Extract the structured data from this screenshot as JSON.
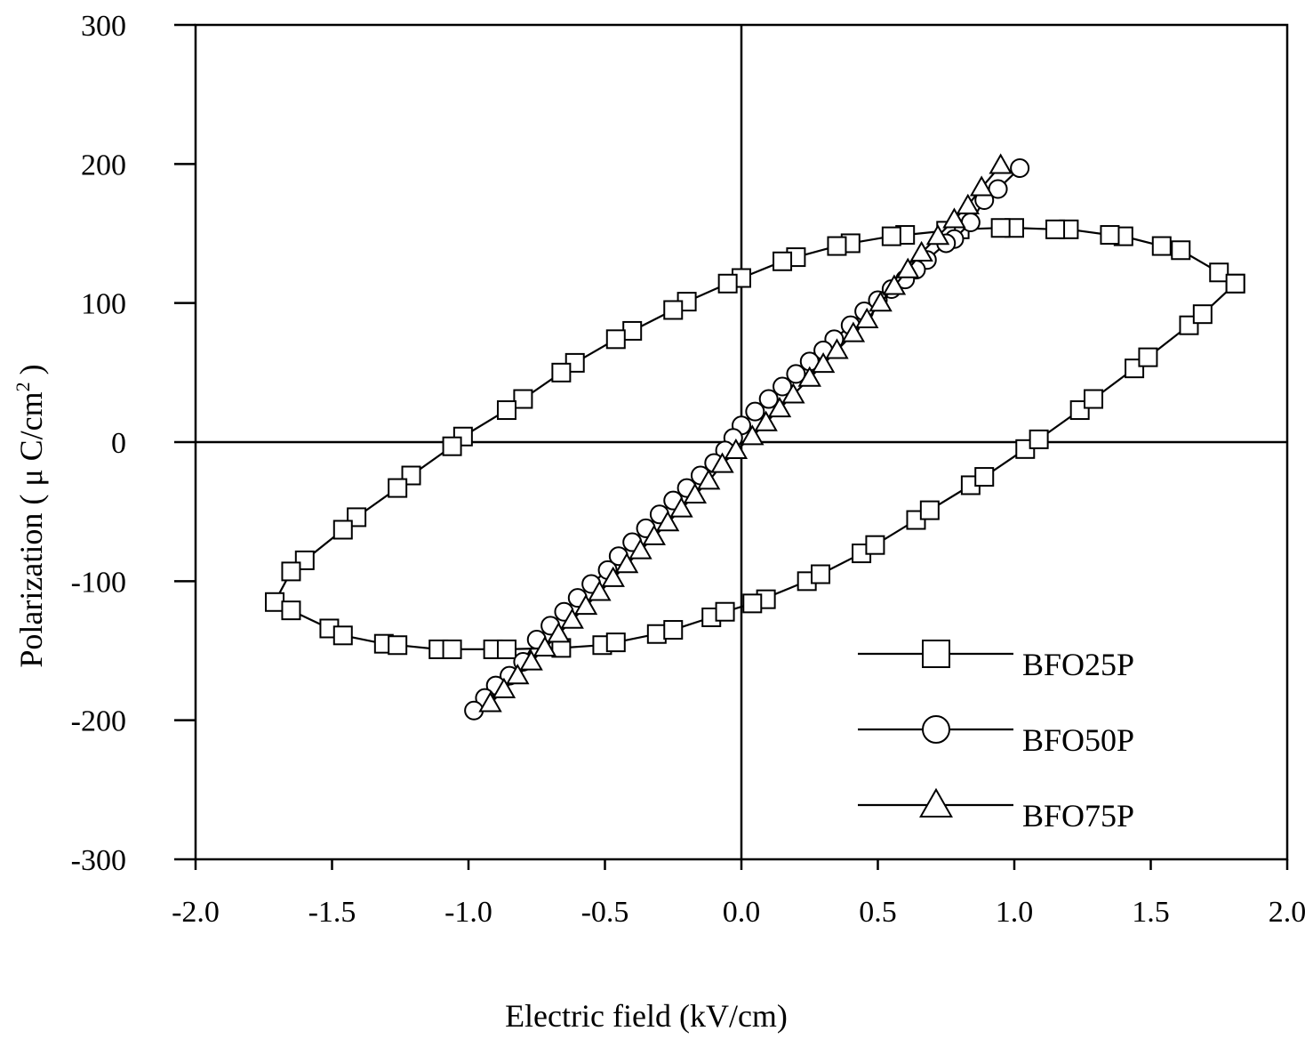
{
  "chart_data": {
    "type": "scatter",
    "xlabel": "Electric field (kV/cm)",
    "ylabel": "Polarization ( μ C/cm",
    "ylabel_superscript": "2",
    "ylabel_close": ")",
    "xlim": [
      -2.0,
      2.0
    ],
    "ylim": [
      -300,
      300
    ],
    "x_ticks": [
      "-2.0",
      "-1.5",
      "-1.0",
      "-0.5",
      "0.0",
      "0.5",
      "1.0",
      "1.5",
      "2.0"
    ],
    "y_ticks": [
      "300",
      "200",
      "100",
      "0",
      "-100",
      "-200",
      "-300"
    ],
    "zero_lines": true,
    "grid": false,
    "legend_position": "bottom-right",
    "series": [
      {
        "name": "BFO25P",
        "marker": "square",
        "points": [
          [
            1.81,
            114
          ],
          [
            1.75,
            122
          ],
          [
            1.61,
            138
          ],
          [
            1.54,
            141
          ],
          [
            1.4,
            148
          ],
          [
            1.35,
            149
          ],
          [
            1.2,
            153
          ],
          [
            1.15,
            153
          ],
          [
            1.0,
            154
          ],
          [
            0.95,
            154
          ],
          [
            0.8,
            153
          ],
          [
            0.75,
            152
          ],
          [
            0.6,
            149
          ],
          [
            0.55,
            148
          ],
          [
            0.4,
            143
          ],
          [
            0.35,
            141
          ],
          [
            0.2,
            133
          ],
          [
            0.15,
            130
          ],
          [
            0.0,
            118
          ],
          [
            -0.05,
            114
          ],
          [
            -0.2,
            101
          ],
          [
            -0.25,
            95
          ],
          [
            -0.4,
            80
          ],
          [
            -0.46,
            74
          ],
          [
            -0.61,
            57
          ],
          [
            -0.66,
            50
          ],
          [
            -0.8,
            31
          ],
          [
            -0.86,
            23
          ],
          [
            -1.02,
            4
          ],
          [
            -1.06,
            -3
          ],
          [
            -1.21,
            -24
          ],
          [
            -1.26,
            -33
          ],
          [
            -1.41,
            -54
          ],
          [
            -1.46,
            -63
          ],
          [
            -1.6,
            -85
          ],
          [
            -1.65,
            -93
          ],
          [
            -1.71,
            -115
          ],
          [
            -1.65,
            -121
          ],
          [
            -1.51,
            -134
          ],
          [
            -1.46,
            -139
          ],
          [
            -1.31,
            -145
          ],
          [
            -1.26,
            -146
          ],
          [
            -1.11,
            -149
          ],
          [
            -1.06,
            -149
          ],
          [
            -0.91,
            -149
          ],
          [
            -0.86,
            -149
          ],
          [
            -0.66,
            -148
          ],
          [
            -0.51,
            -146
          ],
          [
            -0.46,
            -144
          ],
          [
            -0.31,
            -138
          ],
          [
            -0.25,
            -135
          ],
          [
            -0.11,
            -126
          ],
          [
            -0.06,
            -122
          ],
          [
            0.09,
            -113
          ],
          [
            0.04,
            -116
          ],
          [
            0.24,
            -100
          ],
          [
            0.29,
            -95
          ],
          [
            0.44,
            -80
          ],
          [
            0.49,
            -74
          ],
          [
            0.64,
            -56
          ],
          [
            0.69,
            -49
          ],
          [
            0.84,
            -31
          ],
          [
            0.89,
            -25
          ],
          [
            1.04,
            -5
          ],
          [
            1.09,
            2
          ],
          [
            1.24,
            23
          ],
          [
            1.29,
            31
          ],
          [
            1.44,
            53
          ],
          [
            1.49,
            61
          ],
          [
            1.64,
            84
          ],
          [
            1.69,
            92
          ],
          [
            1.81,
            114
          ]
        ]
      },
      {
        "name": "BFO50P",
        "marker": "circle",
        "points": [
          [
            1.02,
            197
          ],
          [
            0.94,
            182
          ],
          [
            0.89,
            174
          ],
          [
            0.84,
            158
          ],
          [
            0.78,
            146
          ],
          [
            0.75,
            143
          ],
          [
            0.68,
            131
          ],
          [
            0.64,
            124
          ],
          [
            0.6,
            117
          ],
          [
            0.55,
            110
          ],
          [
            0.5,
            102
          ],
          [
            0.45,
            94
          ],
          [
            0.4,
            84
          ],
          [
            0.34,
            74
          ],
          [
            0.3,
            66
          ],
          [
            0.25,
            58
          ],
          [
            0.2,
            49
          ],
          [
            0.15,
            40
          ],
          [
            0.1,
            31
          ],
          [
            0.05,
            22
          ],
          [
            0.0,
            12
          ],
          [
            -0.03,
            3
          ],
          [
            -0.06,
            -6
          ],
          [
            -0.1,
            -15
          ],
          [
            -0.15,
            -24
          ],
          [
            -0.2,
            -33
          ],
          [
            -0.25,
            -42
          ],
          [
            -0.3,
            -52
          ],
          [
            -0.35,
            -62
          ],
          [
            -0.4,
            -72
          ],
          [
            -0.45,
            -82
          ],
          [
            -0.49,
            -92
          ],
          [
            -0.55,
            -102
          ],
          [
            -0.6,
            -112
          ],
          [
            -0.65,
            -122
          ],
          [
            -0.7,
            -132
          ],
          [
            -0.75,
            -142
          ],
          [
            -0.8,
            -158
          ],
          [
            -0.85,
            -168
          ],
          [
            -0.9,
            -175
          ],
          [
            -0.94,
            -184
          ],
          [
            -0.98,
            -193
          ]
        ]
      },
      {
        "name": "BFO75P",
        "marker": "triangle",
        "points": [
          [
            0.95,
            199
          ],
          [
            0.88,
            183
          ],
          [
            0.83,
            170
          ],
          [
            0.78,
            160
          ],
          [
            0.72,
            148
          ],
          [
            0.66,
            136
          ],
          [
            0.61,
            124
          ],
          [
            0.56,
            112
          ],
          [
            0.51,
            100
          ],
          [
            0.46,
            88
          ],
          [
            0.41,
            78
          ],
          [
            0.35,
            66
          ],
          [
            0.3,
            56
          ],
          [
            0.25,
            46
          ],
          [
            0.19,
            34
          ],
          [
            0.14,
            24
          ],
          [
            0.09,
            14
          ],
          [
            0.04,
            4
          ],
          [
            -0.02,
            -6
          ],
          [
            -0.07,
            -16
          ],
          [
            -0.12,
            -28
          ],
          [
            -0.17,
            -38
          ],
          [
            -0.22,
            -48
          ],
          [
            -0.27,
            -58
          ],
          [
            -0.32,
            -68
          ],
          [
            -0.37,
            -78
          ],
          [
            -0.42,
            -88
          ],
          [
            -0.47,
            -98
          ],
          [
            -0.52,
            -108
          ],
          [
            -0.57,
            -118
          ],
          [
            -0.62,
            -128
          ],
          [
            -0.67,
            -138
          ],
          [
            -0.72,
            -148
          ],
          [
            -0.77,
            -158
          ],
          [
            -0.82,
            -168
          ],
          [
            -0.87,
            -178
          ],
          [
            -0.92,
            -188
          ]
        ]
      }
    ]
  }
}
